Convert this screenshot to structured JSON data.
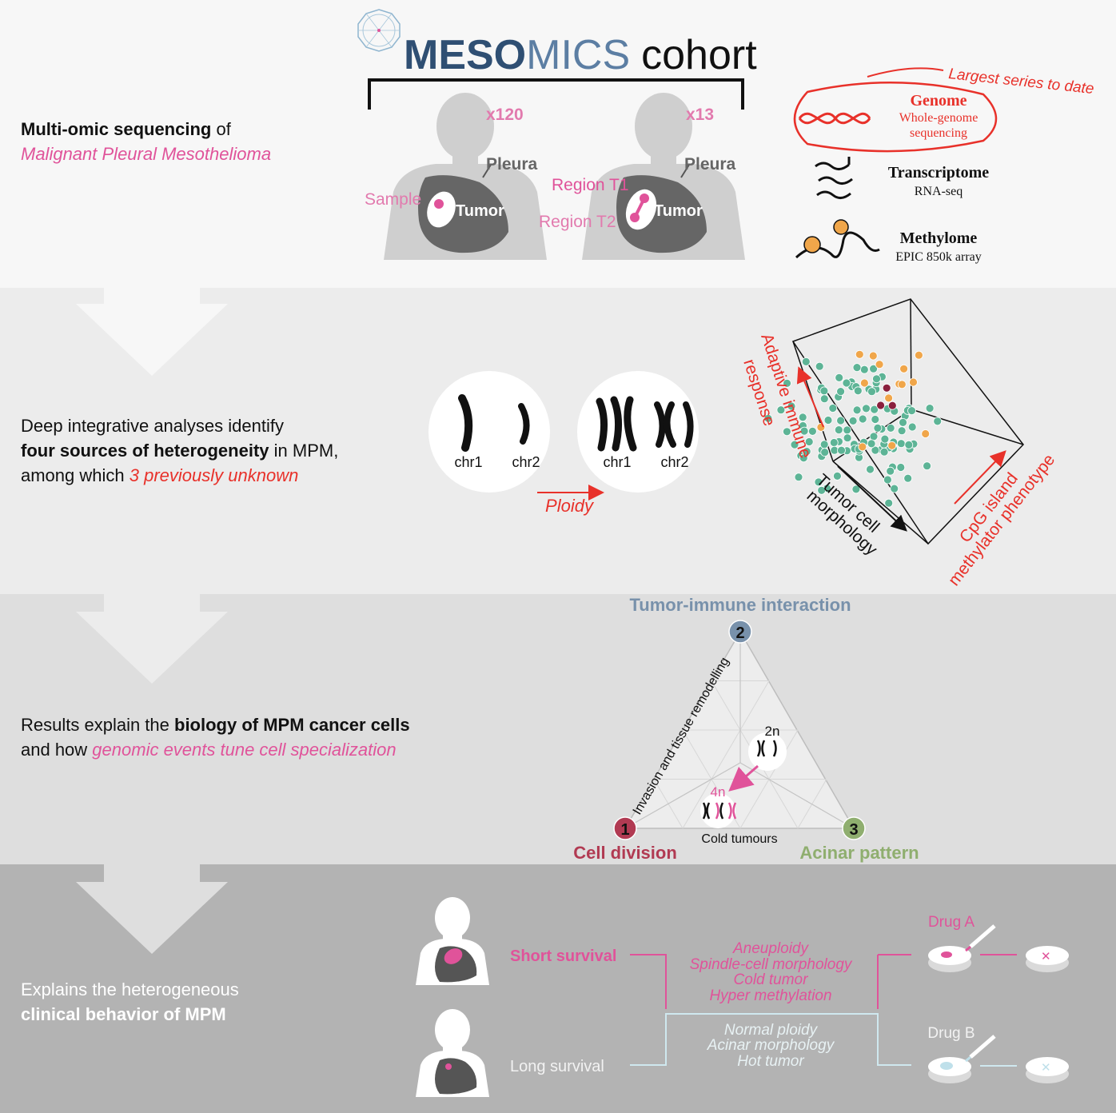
{
  "header": {
    "logo_prefix": "MESO",
    "logo_suffix": "MICS",
    "logo_word": "cohort",
    "count_left": "x120",
    "count_right": "x13",
    "pleura_left": "Pleura",
    "pleura_right": "Pleura",
    "sample_label": "Sample",
    "tumor_left": "Tumor",
    "tumor_right": "Tumor",
    "region_t1": "Region T1",
    "region_t2": "Region T2"
  },
  "section1": {
    "line1_bold": "Multi-omic sequencing",
    "line1_rest": " of",
    "line2_italic": "Malignant Pleural Mesothelioma"
  },
  "omics": {
    "largest_series": "Largest series to date",
    "genome_title": "Genome",
    "genome_sub1": "Whole-genome",
    "genome_sub2": "sequencing",
    "transcriptome_title": "Transcriptome",
    "transcriptome_sub": "RNA-seq",
    "methylome_title": "Methylome",
    "methylome_sub": "EPIC 850k array"
  },
  "section2": {
    "line1": "Deep integrative analyses identify",
    "line2_bold": "four sources of heterogeneity",
    "line2_rest": " in MPM,",
    "line3_start": "among which ",
    "line3_italic": "3 previously unknown",
    "chr1_left": "chr1",
    "chr2_left": "chr2",
    "chr1_right": "chr1",
    "chr2_right": "chr2",
    "ploidy": "Ploidy",
    "axis_adaptive_1": "Adaptive immune",
    "axis_adaptive_2": "response",
    "axis_tumor_1": "Tumor cell",
    "axis_tumor_2": "morphology",
    "axis_cpg_1": "CpG island",
    "axis_cpg_2": "methylator phenotype"
  },
  "section3": {
    "line1_start": "Results explain the ",
    "line1_bold": "biology of MPM cancer cells",
    "line2_start": "and how ",
    "line2_italic": "genomic events tune cell specialization",
    "vertex2_title": "Tumor-immune interaction",
    "vertex1_title": "Cell division",
    "vertex3_title": "Acinar pattern",
    "num1": "1",
    "num2": "2",
    "num3": "3",
    "edge_label": "Invasion and tissue remodelling",
    "bottom_label": "Cold tumours",
    "label_2n": "2n",
    "label_4n": "4n"
  },
  "section4": {
    "line1": "Explains the heterogeneous",
    "line2_bold": "clinical behavior of MPM",
    "short_survival": "Short survival",
    "long_survival": "Long survival",
    "short_features": [
      "Aneuploidy",
      "Spindle-cell morphology",
      "Cold tumor",
      "Hyper methylation"
    ],
    "long_features": [
      "Normal ploidy",
      "Acinar morphology",
      "Hot tumor"
    ],
    "drug_a": "Drug A",
    "drug_b": "Drug B"
  },
  "colors": {
    "pink": "#e0539a",
    "red": "#e8312a",
    "logo_blue": "#2f4f73",
    "teal": "#5db496",
    "orange": "#f0a64a",
    "maroon": "#8a1f3d",
    "vertex1": "#b13a52",
    "vertex2": "#7891ab",
    "vertex3": "#8fae6f"
  },
  "icons": [
    "decagon-logo-icon",
    "dna-helix-icon",
    "rna-strands-icon",
    "methylation-icon",
    "chromosome-icon",
    "pipette-icon",
    "petri-dish-icon"
  ]
}
